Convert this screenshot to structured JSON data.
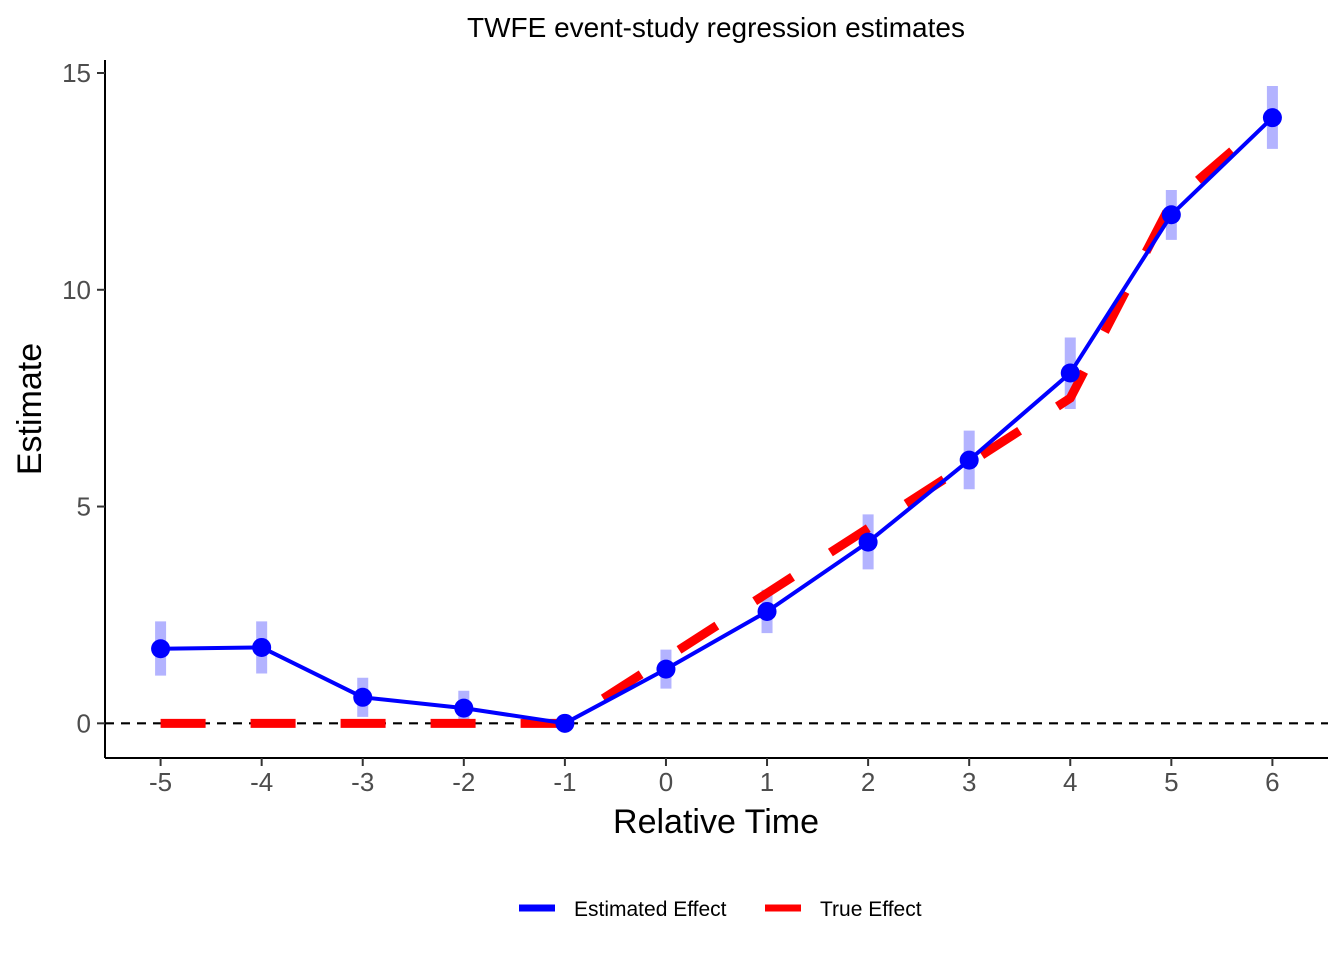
{
  "chart_data": {
    "type": "line",
    "title": "TWFE event-study regression estimates",
    "xlabel": "Relative Time",
    "ylabel": "Estimate",
    "x": [
      -5,
      -4,
      -3,
      -2,
      -1,
      0,
      1,
      2,
      3,
      4,
      5,
      6
    ],
    "x_ticks": [
      "-5",
      "-4",
      "-3",
      "-2",
      "-1",
      "0",
      "1",
      "2",
      "3",
      "4",
      "5",
      "6"
    ],
    "y_ticks": [
      "0",
      "5",
      "10",
      "15"
    ],
    "xlim": [
      -5.55,
      6.55
    ],
    "ylim": [
      -0.8,
      15.3
    ],
    "grid": false,
    "reference_line": {
      "y": 0,
      "style": "dashed",
      "color": "#000000"
    },
    "series": [
      {
        "name": "Estimated Effect",
        "color": "#0000ff",
        "style": "solid",
        "markers": true,
        "values": [
          1.72,
          1.75,
          0.6,
          0.35,
          0.0,
          1.25,
          2.58,
          4.18,
          6.07,
          8.08,
          11.73,
          13.97
        ],
        "ci_lower": [
          1.1,
          1.15,
          0.15,
          -0.05,
          0.0,
          0.8,
          2.08,
          3.55,
          5.4,
          7.25,
          11.15,
          13.25
        ],
        "ci_upper": [
          2.35,
          2.35,
          1.05,
          0.75,
          0.0,
          1.7,
          3.08,
          4.82,
          6.75,
          8.9,
          12.3,
          14.7
        ],
        "ci_color": "#b3b3ff"
      },
      {
        "name": "True Effect",
        "color": "#ff0000",
        "style": "dashed",
        "markers": false,
        "values": [
          0,
          0,
          0,
          0,
          0,
          1.5,
          3.0,
          4.5,
          6.0,
          7.5,
          12.0,
          14.0
        ]
      }
    ],
    "legend": {
      "position": "bottom"
    }
  }
}
